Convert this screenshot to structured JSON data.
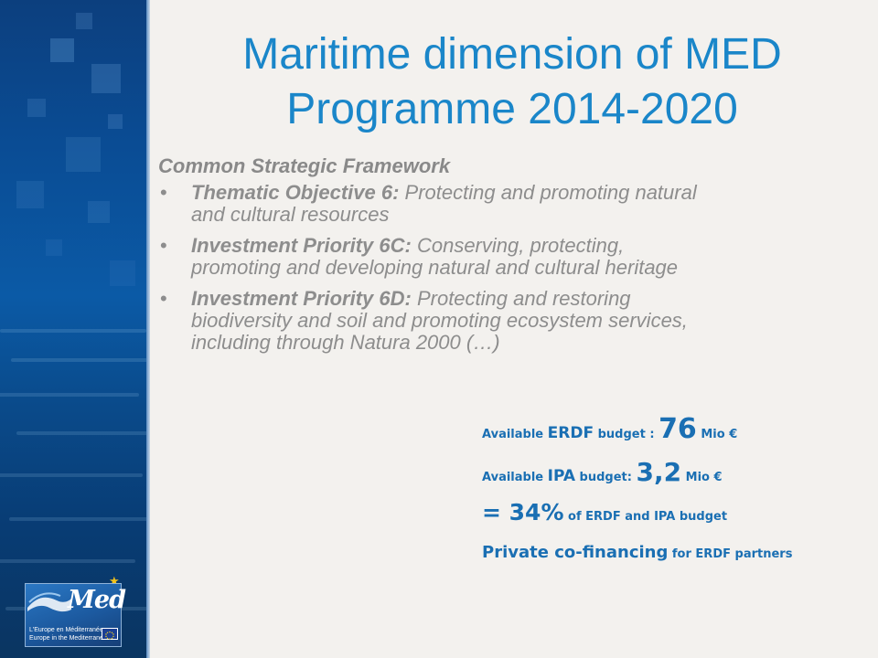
{
  "slide": {
    "title_line1": "Maritime dimension of MED",
    "title_line2": "Programme 2014-2020"
  },
  "framework": {
    "heading": "Common Strategic Framework",
    "bullet_char": "•",
    "items": [
      {
        "label": "Thematic Objective 6:",
        "line1": " Protecting and promoting natural",
        "line2": "and cultural resources"
      },
      {
        "label": "Investment Priority 6C:",
        "line1": "  Conserving, protecting,",
        "line2": "promoting and developing natural and cultural heritage"
      },
      {
        "label": "Investment Priority 6D:",
        "line1": " Protecting and restoring",
        "line2": "biodiversity and soil and promoting ecosystem services,",
        "line3": "including through Natura 2000 (…)"
      }
    ]
  },
  "budget": {
    "erdf": {
      "prefix": "Available ",
      "key": "ERDF",
      "middle": " budget : ",
      "value": "76",
      "unit": " Mio €"
    },
    "ipa": {
      "prefix": "Available ",
      "key": "IPA",
      "middle": " budget:  ",
      "value": "3,2",
      "unit": "  Mio €"
    },
    "share": {
      "value": "= 34%",
      "suffix": "  of ERDF and IPA budget"
    },
    "cofinancing": {
      "main": "Private co-financing",
      "suffix": " for ERDF partners"
    }
  },
  "logo": {
    "word": "Med",
    "tagline_fr": "L'Europe en Méditerranée",
    "tagline_en": "Europe in the Mediterranean"
  },
  "colors": {
    "title": "#1a86c9",
    "body_text": "#8d8d8d",
    "budget_text": "#1a6fb3",
    "panel": "#0b5aa6",
    "background": "#f3f1ee",
    "star": "#f2c21b"
  },
  "icons": [
    "star-icon",
    "wave-icon",
    "eu-flag-icon"
  ]
}
